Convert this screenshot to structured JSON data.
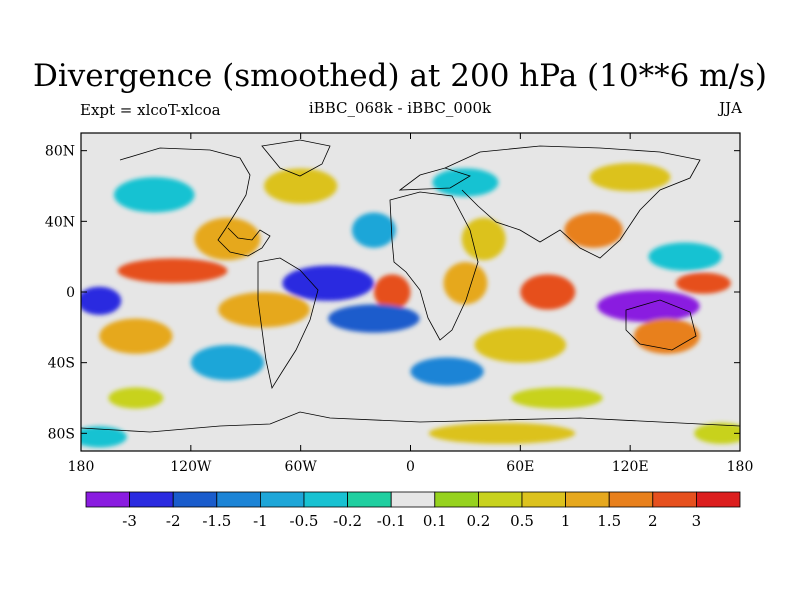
{
  "title": "Divergence (smoothed) at 200 hPa (10**6 m/s)",
  "left_label": "Expt = xlcoT-xlcoa",
  "center_label": "iBBC_068k - iBBC_000k",
  "right_label": "JJA",
  "lat_ticks": [
    "80N",
    "40N",
    "0",
    "40S",
    "80S"
  ],
  "lon_ticks": [
    "180",
    "120W",
    "60W",
    "0",
    "60E",
    "120E",
    "180"
  ],
  "colorbar": {
    "colors": [
      "#8a1ce0",
      "#2b2be0",
      "#1a5ccc",
      "#1c84d6",
      "#1ea6d8",
      "#18c2d2",
      "#1fcfa0",
      "#e6e6e6",
      "#96d21e",
      "#c8d21e",
      "#dcc21e",
      "#e6a81e",
      "#e8801c",
      "#e6501e",
      "#dc1e1e"
    ],
    "labels": [
      "-3",
      "-2",
      "-1.5",
      "-1",
      "-0.5",
      "-0.2",
      "-0.1",
      "0.1",
      "0.2",
      "0.5",
      "1",
      "1.5",
      "2",
      "3"
    ]
  },
  "field_blobs": [
    {
      "lon": -140,
      "lat": 55,
      "rlon": 22,
      "rlat": 10,
      "level": 5
    },
    {
      "lon": -60,
      "lat": 60,
      "rlon": 20,
      "rlat": 10,
      "level": 10
    },
    {
      "lon": 30,
      "lat": 62,
      "rlon": 18,
      "rlat": 8,
      "level": 5
    },
    {
      "lon": 120,
      "lat": 65,
      "rlon": 22,
      "rlat": 8,
      "level": 10
    },
    {
      "lon": -100,
      "lat": 30,
      "rlon": 18,
      "rlat": 12,
      "level": 11
    },
    {
      "lon": -20,
      "lat": 35,
      "rlon": 12,
      "rlat": 10,
      "level": 4
    },
    {
      "lon": 40,
      "lat": 30,
      "rlon": 12,
      "rlat": 12,
      "level": 10
    },
    {
      "lon": 100,
      "lat": 35,
      "rlon": 16,
      "rlat": 10,
      "level": 12
    },
    {
      "lon": 150,
      "lat": 20,
      "rlon": 20,
      "rlat": 8,
      "level": 5
    },
    {
      "lon": -130,
      "lat": 12,
      "rlon": 30,
      "rlat": 7,
      "level": 13
    },
    {
      "lon": -45,
      "lat": 5,
      "rlon": 25,
      "rlat": 10,
      "level": 1
    },
    {
      "lon": -10,
      "lat": 0,
      "rlon": 10,
      "rlat": 10,
      "level": 13
    },
    {
      "lon": 30,
      "lat": 5,
      "rlon": 12,
      "rlat": 12,
      "level": 11
    },
    {
      "lon": 75,
      "lat": 0,
      "rlon": 15,
      "rlat": 10,
      "level": 13
    },
    {
      "lon": 130,
      "lat": -8,
      "rlon": 28,
      "rlat": 9,
      "level": 0
    },
    {
      "lon": 160,
      "lat": 5,
      "rlon": 15,
      "rlat": 6,
      "level": 13
    },
    {
      "lon": -170,
      "lat": -5,
      "rlon": 12,
      "rlat": 8,
      "level": 1
    },
    {
      "lon": -150,
      "lat": -25,
      "rlon": 20,
      "rlat": 10,
      "level": 11
    },
    {
      "lon": -80,
      "lat": -10,
      "rlon": 25,
      "rlat": 10,
      "level": 11
    },
    {
      "lon": -20,
      "lat": -15,
      "rlon": 25,
      "rlat": 8,
      "level": 2
    },
    {
      "lon": 60,
      "lat": -30,
      "rlon": 25,
      "rlat": 10,
      "level": 10
    },
    {
      "lon": 140,
      "lat": -25,
      "rlon": 18,
      "rlat": 10,
      "level": 12
    },
    {
      "lon": -100,
      "lat": -40,
      "rlon": 20,
      "rlat": 10,
      "level": 4
    },
    {
      "lon": 20,
      "lat": -45,
      "rlon": 20,
      "rlat": 8,
      "level": 3
    },
    {
      "lon": -150,
      "lat": -60,
      "rlon": 15,
      "rlat": 6,
      "level": 9
    },
    {
      "lon": 80,
      "lat": -60,
      "rlon": 25,
      "rlat": 6,
      "level": 9
    },
    {
      "lon": -170,
      "lat": -82,
      "rlon": 15,
      "rlat": 6,
      "level": 5
    },
    {
      "lon": 50,
      "lat": -80,
      "rlon": 40,
      "rlat": 6,
      "level": 10
    },
    {
      "lon": 170,
      "lat": -80,
      "rlon": 15,
      "rlat": 6,
      "level": 9
    }
  ]
}
